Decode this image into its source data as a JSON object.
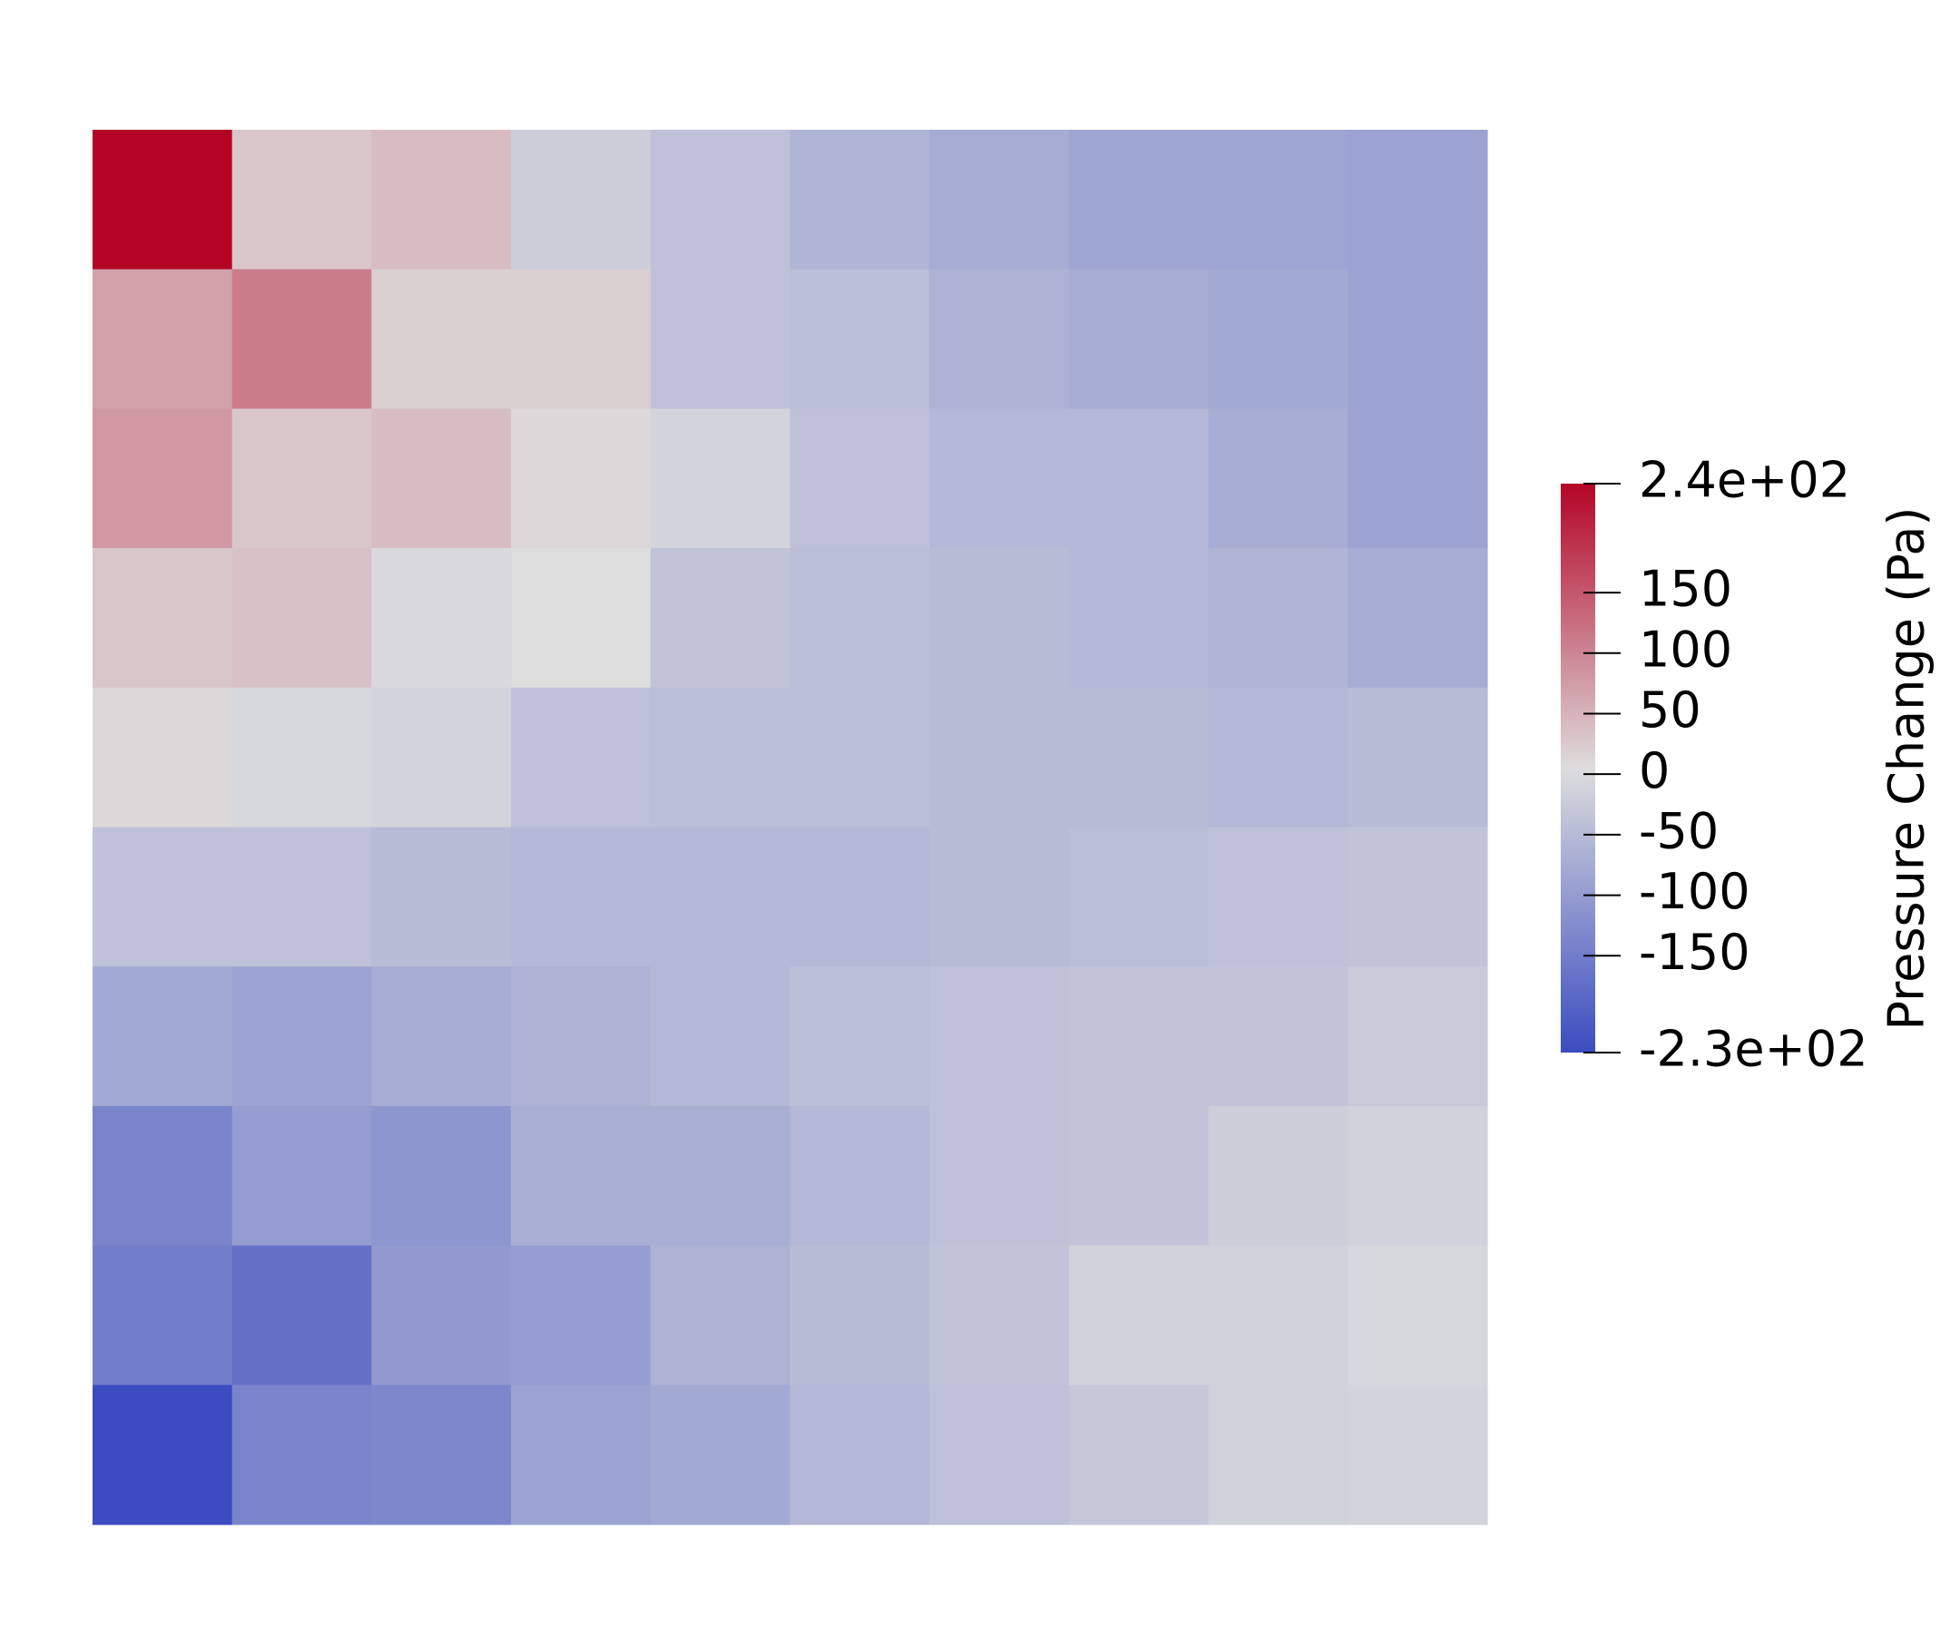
{
  "chart_data": {
    "type": "heatmap",
    "colorbar_label": "Pressure Change (Pa)",
    "colors": [
      "#3b4cc0",
      "#dddddd",
      "#b40426"
    ],
    "zlim": [
      -230,
      240
    ],
    "zticks": [
      {
        "value": 240,
        "label": "2.4e+02"
      },
      150,
      100,
      50,
      0,
      -50,
      -100,
      -150,
      {
        "value": -230,
        "label": "-2.3e+02"
      }
    ],
    "z": [
      [
        240,
        30,
        40,
        -20,
        -40,
        -60,
        -75,
        -85,
        -85,
        -90
      ],
      [
        70,
        110,
        20,
        20,
        -40,
        -45,
        -65,
        -75,
        -80,
        -90
      ],
      [
        80,
        30,
        40,
        10,
        -10,
        -40,
        -55,
        -55,
        -75,
        -90
      ],
      [
        30,
        35,
        0,
        5,
        -35,
        -45,
        -50,
        -55,
        -60,
        -75
      ],
      [
        10,
        -5,
        -10,
        -40,
        -45,
        -45,
        -50,
        -50,
        -55,
        -50
      ],
      [
        -40,
        -40,
        -50,
        -55,
        -55,
        -55,
        -50,
        -45,
        -40,
        -35
      ],
      [
        -80,
        -90,
        -75,
        -65,
        -55,
        -45,
        -40,
        -35,
        -35,
        -25
      ],
      [
        -140,
        -100,
        -110,
        -70,
        -70,
        -55,
        -40,
        -35,
        -20,
        -15
      ],
      [
        -150,
        -170,
        -105,
        -100,
        -65,
        -50,
        -35,
        -15,
        -15,
        -5
      ],
      [
        -230,
        -140,
        -135,
        -90,
        -80,
        -55,
        -40,
        -30,
        -15,
        -10
      ]
    ]
  }
}
